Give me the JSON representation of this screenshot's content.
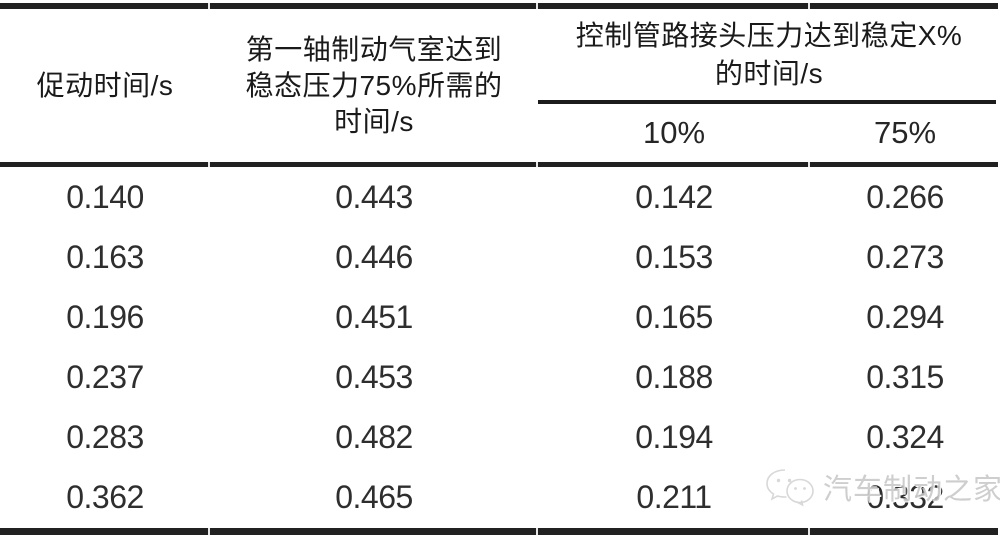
{
  "chart_data": {
    "type": "table",
    "title": "",
    "columns": [
      "促动时间/s",
      "第一轴制动气室达到稳态压力75%所需的时间/s",
      "控制管路接头压力达到稳定X%的时间/s — 10%",
      "控制管路接头压力达到稳定X%的时间/s — 75%"
    ],
    "rows": [
      [
        0.14,
        0.443,
        0.142,
        0.266
      ],
      [
        0.163,
        0.446,
        0.153,
        0.273
      ],
      [
        0.196,
        0.451,
        0.165,
        0.294
      ],
      [
        0.237,
        0.453,
        0.188,
        0.315
      ],
      [
        0.283,
        0.482,
        0.194,
        0.324
      ],
      [
        0.362,
        0.465,
        0.211,
        0.332
      ]
    ]
  },
  "table": {
    "header": {
      "col1": "促动时间/s",
      "col2_lines": [
        "第一轴制动气室达到",
        "稳态压力75%所需的",
        "时间/s"
      ],
      "group_lines": [
        "控制管路接头压力达到稳定X%",
        "的时间/s"
      ],
      "sub": [
        "10%",
        "75%"
      ]
    },
    "rows": [
      [
        "0.140",
        "0.443",
        "0.142",
        "0.266"
      ],
      [
        "0.163",
        "0.446",
        "0.153",
        "0.273"
      ],
      [
        "0.196",
        "0.451",
        "0.165",
        "0.294"
      ],
      [
        "0.237",
        "0.453",
        "0.188",
        "0.315"
      ],
      [
        "0.283",
        "0.482",
        "0.194",
        "0.324"
      ],
      [
        "0.362",
        "0.465",
        "0.211",
        "0.332"
      ]
    ]
  },
  "watermark": {
    "text": "汽车制动之家",
    "logo": "wechat-chat-bubbles-icon"
  },
  "colors": {
    "rule": "#212121",
    "header_text": "#1a1a1a",
    "data_text": "#2e2e2e",
    "watermark": "#bebebe",
    "background": "#ffffff"
  }
}
